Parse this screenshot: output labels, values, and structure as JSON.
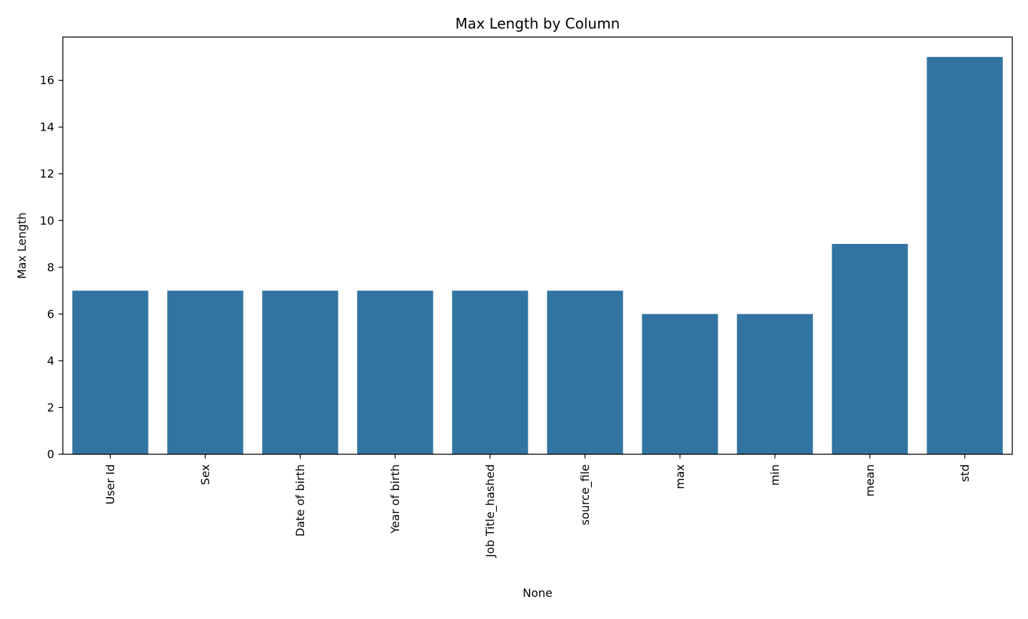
{
  "chart_data": {
    "type": "bar",
    "title": "Max Length by Column",
    "xlabel": "None",
    "ylabel": "Max Length",
    "categories": [
      "User Id",
      "Sex",
      "Date of birth",
      "Year of birth",
      "Job Title_hashed",
      "source_file",
      "max",
      "min",
      "mean",
      "std"
    ],
    "values": [
      7,
      7,
      7,
      7,
      7,
      7,
      6,
      6,
      9,
      17
    ],
    "ylim": [
      0,
      17.85
    ],
    "yticks": [
      0,
      2,
      4,
      6,
      8,
      10,
      12,
      14,
      16
    ],
    "grid": false,
    "bar_color": "#3274a1"
  }
}
